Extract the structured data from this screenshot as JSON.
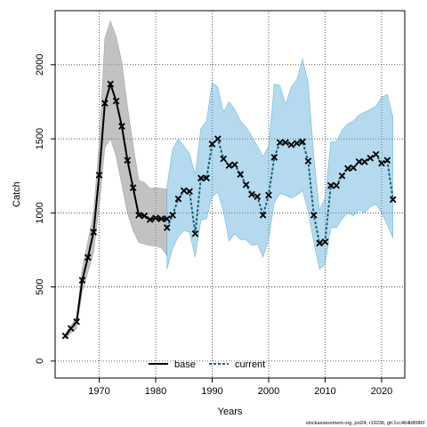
{
  "chart_data": {
    "type": "line",
    "xlabel": "Years",
    "ylabel": "Catch",
    "xlim": [
      1962.2,
      2024.1
    ],
    "ylim": [
      -115,
      2365
    ],
    "x_ticks": [
      1970,
      1980,
      1990,
      2000,
      2010,
      2020
    ],
    "y_ticks": [
      0,
      500,
      1000,
      1500,
      2000
    ],
    "grid": true,
    "legend_position": "bottom-center",
    "series": [
      {
        "name": "base",
        "color": "#000000",
        "band_color": "#999999",
        "line_style": "solid",
        "x": [
          1964,
          1965,
          1966,
          1967,
          1968,
          1969,
          1970,
          1971,
          1972,
          1973,
          1974,
          1975,
          1976,
          1977,
          1978,
          1979,
          1980,
          1981,
          1982
        ],
        "y": [
          170,
          220,
          265,
          545,
          700,
          870,
          1255,
          1740,
          1870,
          1755,
          1585,
          1355,
          1170,
          985,
          980,
          955,
          965,
          960,
          960
        ],
        "lower": [
          150,
          190,
          220,
          470,
          600,
          730,
          1040,
          1440,
          1500,
          1380,
          1190,
          1000,
          880,
          800,
          790,
          780,
          775,
          765,
          710
        ],
        "upper": [
          185,
          240,
          300,
          630,
          810,
          1000,
          1470,
          2180,
          2295,
          2190,
          2020,
          1720,
          1460,
          1220,
          1205,
          1165,
          1170,
          1165,
          1160
        ]
      },
      {
        "name": "current",
        "color": "#1a5f7a",
        "band_color": "#5aaed8",
        "line_style": "dashed",
        "x": [
          1982,
          1983,
          1984,
          1985,
          1986,
          1987,
          1988,
          1989,
          1990,
          1991,
          1992,
          1993,
          1994,
          1995,
          1996,
          1997,
          1998,
          1999,
          2000,
          2001,
          2002,
          2003,
          2004,
          2005,
          2006,
          2007,
          2008,
          2009,
          2010,
          2011,
          2012,
          2013,
          2014,
          2015,
          2016,
          2017,
          2018,
          2019,
          2020,
          2021,
          2022
        ],
        "y": [
          900,
          985,
          1095,
          1150,
          1145,
          860,
          1235,
          1235,
          1465,
          1500,
          1365,
          1320,
          1325,
          1260,
          1190,
          1125,
          1110,
          985,
          1120,
          1375,
          1475,
          1475,
          1460,
          1470,
          1480,
          1350,
          985,
          795,
          805,
          1185,
          1185,
          1250,
          1300,
          1305,
          1345,
          1345,
          1370,
          1395,
          1335,
          1355,
          1090
        ],
        "lower": [
          620,
          760,
          840,
          880,
          870,
          700,
          950,
          960,
          1110,
          1140,
          1010,
          810,
          860,
          820,
          820,
          780,
          790,
          700,
          820,
          1070,
          1130,
          1120,
          1100,
          1120,
          1150,
          1010,
          800,
          620,
          650,
          900,
          900,
          960,
          1000,
          980,
          1020,
          1000,
          1040,
          1060,
          1000,
          920,
          830
        ],
        "upper": [
          1180,
          1430,
          1500,
          1450,
          1400,
          1260,
          1570,
          1620,
          1880,
          1850,
          1680,
          1750,
          1700,
          1620,
          1580,
          1520,
          1450,
          1380,
          1450,
          1870,
          1860,
          1730,
          1850,
          1900,
          2040,
          1880,
          1380,
          1020,
          1100,
          1480,
          1480,
          1560,
          1600,
          1620,
          1660,
          1680,
          1700,
          1720,
          1780,
          1800,
          1650
        ]
      }
    ],
    "footnote": "stockassessment.org, pol24, r19236, git:1cc464b8086f"
  }
}
